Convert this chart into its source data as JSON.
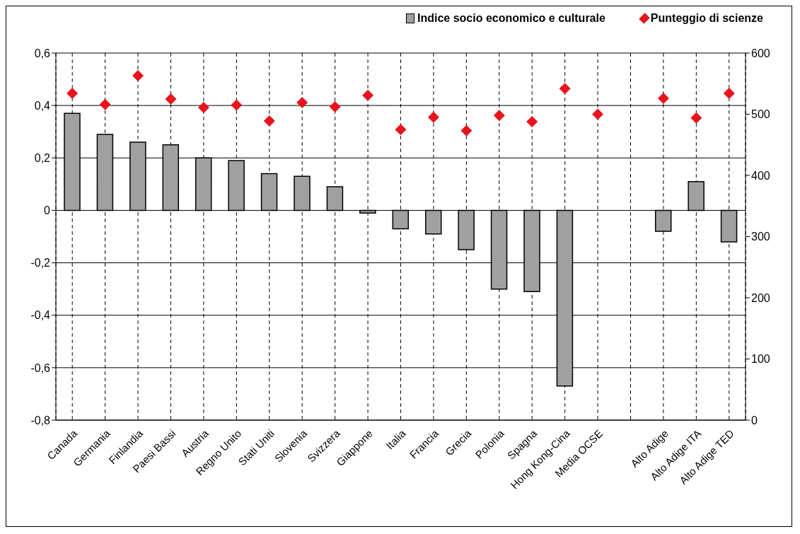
{
  "chart_data": {
    "type": "bar",
    "categories": [
      "Canada",
      "Germania",
      "Finlandia",
      "Paesi Bassi",
      "Austria",
      "Regno Unito",
      "Stati Uniti",
      "Slovenia",
      "Svizzera",
      "Giappone",
      "Italia",
      "Francia",
      "Grecia",
      "Polonia",
      "Spagna",
      "Hong Kong-Cina",
      "Media OCSE",
      null,
      "Alto Adige",
      "Alto Adige ITA",
      "Alto Adige TED"
    ],
    "series": [
      {
        "name": "Indice socio economico e culturale",
        "color": "#a0a0a0",
        "values": [
          0.37,
          0.29,
          0.26,
          0.25,
          0.2,
          0.19,
          0.14,
          0.13,
          0.09,
          -0.01,
          -0.07,
          -0.09,
          -0.15,
          -0.3,
          -0.31,
          -0.67,
          0,
          null,
          -0.08,
          0.11,
          -0.12
        ]
      },
      {
        "name": "Punteggio di scienze",
        "type": "scatter",
        "axis": "y2",
        "color": "#e8141c",
        "values": [
          534,
          516,
          563,
          525,
          511,
          515,
          489,
          519,
          512,
          531,
          475,
          495,
          473,
          498,
          488,
          542,
          500,
          null,
          526,
          494,
          534
        ]
      }
    ],
    "ylim": [
      -0.8,
      0.6
    ],
    "yticks": [
      {
        "value": -0.8,
        "label": "-0,8"
      },
      {
        "value": -0.6,
        "label": "-0,6"
      },
      {
        "value": -0.4,
        "label": "-0,4"
      },
      {
        "value": -0.2,
        "label": "-0,2"
      },
      0,
      {
        "value": 0.2,
        "label": "0,2"
      },
      {
        "value": 0.4,
        "label": "0,4"
      },
      {
        "value": 0.6,
        "label": "0,6"
      }
    ],
    "y2lim": [
      0,
      600
    ],
    "y2ticks": [
      0,
      100,
      200,
      300,
      400,
      500,
      600
    ],
    "grid": true,
    "legend": "top right",
    "marker": "diamond"
  }
}
